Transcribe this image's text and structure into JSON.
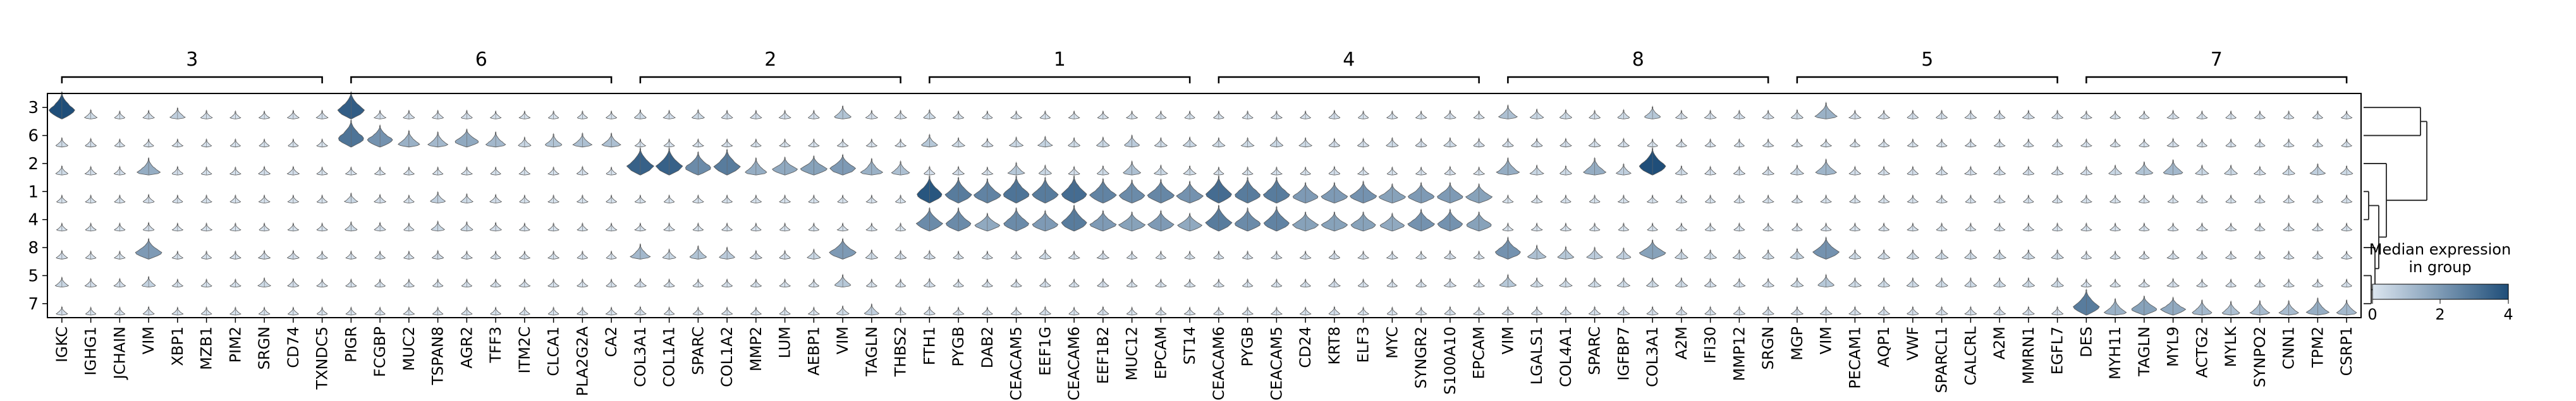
{
  "chart_data": {
    "type": "stacked_violin",
    "rows": [
      "3",
      "6",
      "2",
      "1",
      "4",
      "8",
      "5",
      "7"
    ],
    "groups": [
      {
        "label": "3",
        "genes": [
          "IGKC",
          "IGHG1",
          "JCHAIN",
          "VIM",
          "XBP1",
          "MZB1",
          "PIM2",
          "SRGN",
          "CD74",
          "TXNDC5"
        ]
      },
      {
        "label": "6",
        "genes": [
          "PIGR",
          "FCGBP",
          "MUC2",
          "TSPAN8",
          "AGR2",
          "TFF3",
          "ITM2C",
          "CLCA1",
          "PLA2G2A",
          "CA2"
        ]
      },
      {
        "label": "2",
        "genes": [
          "COL3A1",
          "COL1A1",
          "SPARC",
          "COL1A2",
          "MMP2",
          "LUM",
          "AEBP1",
          "VIM",
          "TAGLN",
          "THBS2"
        ]
      },
      {
        "label": "1",
        "genes": [
          "FTH1",
          "PYGB",
          "DAB2",
          "CEACAM5",
          "EEF1G",
          "CEACAM6",
          "EEF1B2",
          "MUC12",
          "EPCAM",
          "ST14"
        ]
      },
      {
        "label": "4",
        "genes": [
          "CEACAM6",
          "PYGB",
          "CEACAM5",
          "CD24",
          "KRT8",
          "ELF3",
          "MYC",
          "SYNGR2",
          "S100A10",
          "EPCAM"
        ]
      },
      {
        "label": "8",
        "genes": [
          "VIM",
          "LGALS1",
          "COL4A1",
          "SPARC",
          "IGFBP7",
          "COL3A1",
          "A2M",
          "IFI30",
          "MMP12",
          "SRGN"
        ]
      },
      {
        "label": "5",
        "genes": [
          "MGP",
          "VIM",
          "PECAM1",
          "AQP1",
          "VWF",
          "SPARCL1",
          "CALCRL",
          "A2M",
          "MMRN1",
          "EGFL7"
        ]
      },
      {
        "label": "7",
        "genes": [
          "DES",
          "MYH11",
          "TAGLN",
          "MYL9",
          "ACTG2",
          "MYLK",
          "SYNPO2",
          "CNN1",
          "TPM2",
          "CSRP1"
        ]
      }
    ],
    "highlight_levels": [
      [
        [
          4.2,
          0.3,
          0.1,
          0.2,
          0.6,
          0.2,
          0.1,
          0.1,
          0.2,
          0.2
        ],
        [
          0.3,
          0.2,
          0.1,
          0.1,
          0.1,
          0.1,
          0.1,
          0.1,
          0.1,
          0.1
        ],
        [
          0.3,
          0.2,
          0.2,
          1.5,
          0.2,
          0.1,
          0.1,
          0.2,
          0.2,
          0.1
        ],
        [
          0.1,
          0.1,
          0.1,
          0.2,
          0.1,
          0.1,
          0.1,
          0.1,
          0.1,
          0.1
        ],
        [
          0.1,
          0.1,
          0.1,
          0.2,
          0.1,
          0.1,
          0.1,
          0.1,
          0.1,
          0.1
        ],
        [
          0.2,
          0.1,
          0.1,
          2.0,
          0.1,
          0.1,
          0.1,
          0.2,
          0.2,
          0.1
        ],
        [
          0.4,
          0.2,
          0.2,
          0.5,
          0.1,
          0.1,
          0.1,
          0.3,
          0.2,
          0.1
        ],
        [
          0.2,
          0.1,
          0.1,
          0.2,
          0.1,
          0.1,
          0.1,
          0.1,
          0.1,
          0.1
        ]
      ],
      [
        [
          3.6,
          0.2,
          0.2,
          0.2,
          0.2,
          0.1,
          0.1,
          0.1,
          0.1,
          0.1
        ],
        [
          3.0,
          2.2,
          1.4,
          1.2,
          1.6,
          1.2,
          0.4,
          0.9,
          1.0,
          1.0
        ],
        [
          0.1,
          0.1,
          0.1,
          0.1,
          0.1,
          0.1,
          0.1,
          0.1,
          0.2,
          0.1
        ],
        [
          0.4,
          0.2,
          0.1,
          0.6,
          0.3,
          0.2,
          0.1,
          0.1,
          0.1,
          0.1
        ],
        [
          0.3,
          0.2,
          0.1,
          0.4,
          0.3,
          0.2,
          0.1,
          0.1,
          0.1,
          0.1
        ],
        [
          0.1,
          0.1,
          0.1,
          0.2,
          0.1,
          0.1,
          0.1,
          0.1,
          0.1,
          0.1
        ],
        [
          0.1,
          0.1,
          0.1,
          0.1,
          0.1,
          0.1,
          0.1,
          0.1,
          0.1,
          0.1
        ],
        [
          0.1,
          0.1,
          0.1,
          0.1,
          0.1,
          0.1,
          0.1,
          0.1,
          0.1,
          0.1
        ]
      ],
      [
        [
          0.3,
          0.2,
          0.3,
          0.2,
          0.2,
          0.2,
          0.2,
          0.9,
          0.2,
          0.2
        ],
        [
          0.1,
          0.1,
          0.1,
          0.1,
          0.1,
          0.1,
          0.1,
          0.1,
          0.1,
          0.1
        ],
        [
          3.5,
          3.5,
          2.4,
          2.8,
          1.5,
          1.6,
          1.8,
          2.0,
          1.4,
          1.0
        ],
        [
          0.1,
          0.1,
          0.1,
          0.1,
          0.1,
          0.1,
          0.1,
          0.1,
          0.1,
          0.1
        ],
        [
          0.1,
          0.1,
          0.1,
          0.1,
          0.1,
          0.1,
          0.1,
          0.1,
          0.1,
          0.1
        ],
        [
          1.2,
          0.4,
          0.9,
          0.7,
          0.2,
          0.2,
          0.4,
          2.0,
          0.3,
          0.2
        ],
        [
          0.2,
          0.1,
          0.1,
          0.1,
          0.1,
          0.1,
          0.1,
          0.8,
          0.1,
          0.1
        ],
        [
          0.2,
          0.1,
          0.1,
          0.1,
          0.1,
          0.1,
          0.1,
          0.3,
          0.6,
          0.1
        ]
      ],
      [
        [
          0.3,
          0.1,
          0.1,
          0.1,
          0.1,
          0.1,
          0.1,
          0.1,
          0.1,
          0.1
        ],
        [
          0.8,
          0.3,
          0.2,
          0.4,
          0.5,
          0.3,
          0.4,
          0.7,
          0.3,
          0.4
        ],
        [
          0.2,
          0.2,
          0.1,
          0.8,
          0.4,
          0.2,
          0.3,
          1.0,
          0.4,
          0.3
        ],
        [
          3.8,
          2.8,
          2.6,
          3.0,
          2.8,
          3.2,
          2.6,
          2.4,
          2.5,
          2.2
        ],
        [
          2.4,
          2.4,
          1.6,
          2.4,
          2.0,
          2.8,
          2.0,
          1.8,
          2.0,
          1.6
        ],
        [
          0.2,
          0.1,
          0.1,
          0.1,
          0.3,
          0.1,
          0.2,
          0.1,
          0.1,
          0.1
        ],
        [
          0.2,
          0.1,
          0.1,
          0.1,
          0.2,
          0.1,
          0.2,
          0.1,
          0.1,
          0.1
        ],
        [
          0.2,
          0.1,
          0.1,
          0.1,
          0.2,
          0.1,
          0.2,
          0.1,
          0.1,
          0.1
        ]
      ],
      [
        [
          0.1,
          0.1,
          0.1,
          0.1,
          0.2,
          0.1,
          0.1,
          0.1,
          0.2,
          0.1
        ],
        [
          0.3,
          0.3,
          0.4,
          0.3,
          0.2,
          0.2,
          0.3,
          0.2,
          0.3,
          0.2
        ],
        [
          0.1,
          0.1,
          0.1,
          0.1,
          0.2,
          0.1,
          0.1,
          0.1,
          0.2,
          0.1
        ],
        [
          3.2,
          2.8,
          2.8,
          2.0,
          2.0,
          2.2,
          1.8,
          2.0,
          2.0,
          1.8
        ],
        [
          2.8,
          2.4,
          2.6,
          1.8,
          1.8,
          1.8,
          1.6,
          2.2,
          2.2,
          1.8
        ],
        [
          0.1,
          0.1,
          0.1,
          0.1,
          0.2,
          0.1,
          0.1,
          0.1,
          0.2,
          0.1
        ],
        [
          0.1,
          0.1,
          0.1,
          0.1,
          0.2,
          0.1,
          0.1,
          0.1,
          0.2,
          0.1
        ],
        [
          0.1,
          0.1,
          0.1,
          0.1,
          0.2,
          0.1,
          0.1,
          0.1,
          0.2,
          0.1
        ]
      ],
      [
        [
          1.0,
          0.4,
          0.3,
          0.2,
          0.3,
          0.8,
          0.2,
          0.2,
          0.2,
          0.2
        ],
        [
          0.2,
          0.2,
          0.2,
          0.2,
          0.2,
          0.1,
          0.1,
          0.1,
          0.1,
          0.1
        ],
        [
          1.5,
          0.4,
          0.3,
          1.5,
          0.6,
          4.0,
          0.3,
          0.2,
          0.2,
          0.2
        ],
        [
          0.1,
          0.1,
          0.1,
          0.1,
          0.1,
          0.1,
          0.1,
          0.1,
          0.1,
          0.1
        ],
        [
          0.1,
          0.1,
          0.1,
          0.1,
          0.1,
          0.1,
          0.1,
          0.1,
          0.1,
          0.1
        ],
        [
          2.2,
          1.0,
          0.8,
          0.7,
          0.6,
          1.8,
          0.4,
          0.3,
          0.3,
          0.3
        ],
        [
          0.8,
          0.3,
          0.3,
          0.3,
          0.3,
          0.3,
          0.3,
          0.2,
          0.2,
          0.2
        ],
        [
          0.2,
          0.2,
          0.2,
          0.2,
          0.2,
          0.2,
          0.2,
          0.2,
          0.2,
          0.2
        ]
      ],
      [
        [
          0.3,
          1.4,
          0.2,
          0.2,
          0.2,
          0.2,
          0.2,
          0.2,
          0.2,
          0.2
        ],
        [
          0.1,
          0.1,
          0.1,
          0.1,
          0.1,
          0.1,
          0.1,
          0.1,
          0.1,
          0.1
        ],
        [
          0.4,
          1.3,
          0.2,
          0.2,
          0.2,
          0.2,
          0.2,
          0.2,
          0.2,
          0.2
        ],
        [
          0.1,
          0.1,
          0.1,
          0.1,
          0.1,
          0.1,
          0.1,
          0.1,
          0.1,
          0.1
        ],
        [
          0.1,
          0.1,
          0.1,
          0.1,
          0.1,
          0.1,
          0.1,
          0.1,
          0.1,
          0.1
        ],
        [
          0.5,
          2.2,
          0.3,
          0.3,
          0.3,
          0.3,
          0.3,
          0.3,
          0.3,
          0.3
        ],
        [
          0.3,
          0.8,
          0.3,
          0.3,
          0.3,
          0.3,
          0.3,
          0.3,
          0.3,
          0.3
        ],
        [
          0.2,
          0.2,
          0.2,
          0.2,
          0.2,
          0.2,
          0.2,
          0.2,
          0.2,
          0.2
        ]
      ],
      [
        [
          0.1,
          0.1,
          0.1,
          0.2,
          0.1,
          0.1,
          0.1,
          0.1,
          0.1,
          0.1
        ],
        [
          0.1,
          0.1,
          0.1,
          0.2,
          0.1,
          0.1,
          0.1,
          0.1,
          0.1,
          0.1
        ],
        [
          0.2,
          0.4,
          0.9,
          1.2,
          0.4,
          0.4,
          0.2,
          0.3,
          0.6,
          0.3
        ],
        [
          0.1,
          0.1,
          0.1,
          0.1,
          0.1,
          0.1,
          0.1,
          0.1,
          0.1,
          0.1
        ],
        [
          0.1,
          0.1,
          0.1,
          0.1,
          0.1,
          0.1,
          0.1,
          0.1,
          0.1,
          0.1
        ],
        [
          0.1,
          0.1,
          0.1,
          0.2,
          0.1,
          0.1,
          0.1,
          0.1,
          0.1,
          0.1
        ],
        [
          0.1,
          0.1,
          0.1,
          0.2,
          0.1,
          0.1,
          0.1,
          0.1,
          0.1,
          0.1
        ],
        [
          2.8,
          1.4,
          1.8,
          1.6,
          1.2,
          1.0,
          1.1,
          1.1,
          1.5,
          1.2
        ]
      ]
    ],
    "colorbar": {
      "title": "Median expression\nin group",
      "ticks": [
        "0",
        "2",
        "4"
      ],
      "range": [
        0,
        4
      ],
      "colors": [
        "#dce6f0",
        "#1f4e79"
      ]
    },
    "dendrogram": true,
    "grid": false,
    "legend_placement": "right"
  }
}
